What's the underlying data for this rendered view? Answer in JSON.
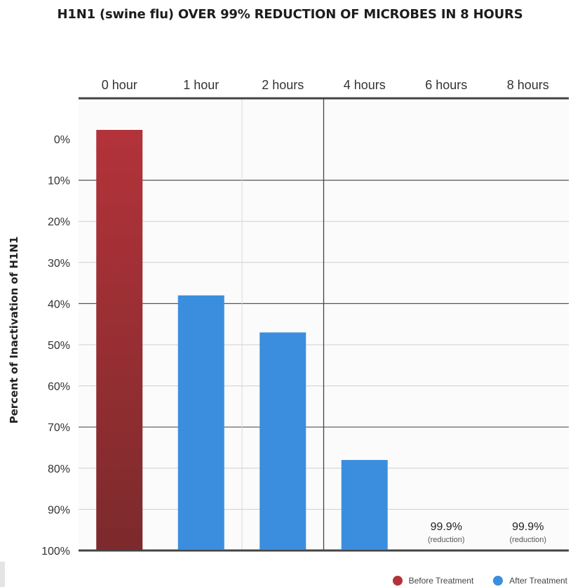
{
  "chart_data": {
    "type": "bar",
    "title": "H1N1 (swine flu) OVER 99% REDUCTION OF MICROBES IN 8 HOURS",
    "xlabel": "",
    "ylabel": "Percent of Inactivation of H1N1",
    "categories": [
      "0 hour",
      "1 hour",
      "2 hours",
      "4 hours",
      "6 hours",
      "8 hours"
    ],
    "x_axis_position": "top",
    "y_ticks": [
      "0%",
      "10%",
      "20%",
      "30%",
      "40%",
      "50%",
      "60%",
      "70%",
      "80%",
      "90%",
      "100%"
    ],
    "y_direction": "inverted",
    "ylim": [
      0,
      100
    ],
    "values": [
      0,
      38,
      47,
      78,
      99.9,
      99.9
    ],
    "series": [
      {
        "name": "Before Treatment",
        "color": "#b3333a",
        "color_dark": "#7c2a2c"
      },
      {
        "name": "After Treatment",
        "color": "#3b8ede"
      }
    ],
    "bar_series_index": [
      0,
      1,
      1,
      1,
      1,
      1
    ],
    "annotations": [
      {
        "category": "6 hours",
        "value": "99.9%",
        "note": "(reduction)"
      },
      {
        "category": "8 hours",
        "value": "99.9%",
        "note": "(reduction)"
      }
    ],
    "grid": true,
    "legend": "bottom-right"
  }
}
